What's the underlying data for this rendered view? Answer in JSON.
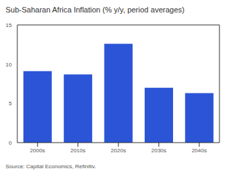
{
  "chart_data": {
    "type": "bar",
    "title": "Sub-Saharan Africa Inflation (% y/y, period averages)",
    "source": "Source: Capital Economics, Refinitiv.",
    "categories": [
      "2000s",
      "2010s",
      "2020s",
      "2030s",
      "2040s"
    ],
    "values": [
      9.1,
      8.7,
      12.6,
      7.0,
      6.3
    ],
    "color": "#2b55d6",
    "ylim": [
      0,
      15
    ],
    "yticks": [
      0,
      5,
      10,
      15
    ],
    "grid": false
  }
}
